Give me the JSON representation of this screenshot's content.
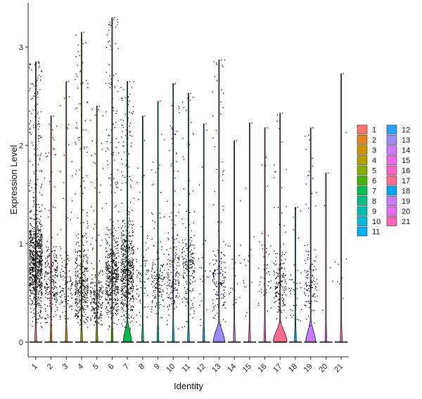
{
  "chart_data": {
    "type": "violin",
    "xlabel": "Identity",
    "ylabel": "Expression Level",
    "ylim": [
      -0.15,
      3.45
    ],
    "yticks": [
      0,
      1,
      2,
      3
    ],
    "grid": false,
    "legend_position": "right",
    "legend_columns": 2,
    "categories": [
      "1",
      "2",
      "3",
      "4",
      "5",
      "6",
      "7",
      "8",
      "9",
      "10",
      "11",
      "12",
      "13",
      "14",
      "15",
      "16",
      "17",
      "18",
      "19",
      "20",
      "21"
    ],
    "colors": [
      "#F8766D",
      "#E7851E",
      "#D09400",
      "#B2A100",
      "#89AC00",
      "#45B500",
      "#00BC51",
      "#00C087",
      "#00C0B2",
      "#00BCD6",
      "#00B3F2",
      "#29A3FF",
      "#9C8DFF",
      "#D277FF",
      "#F166E8",
      "#FF61C7",
      "#FF6C8F",
      "#00A5FF",
      "#C77CFF",
      "#E76BF3",
      "#FF62BC"
    ],
    "series": [
      {
        "category": "1",
        "n_points": 900,
        "max": 2.85,
        "dense_region": [
          0.4,
          1.2
        ]
      },
      {
        "category": "2",
        "n_points": 230,
        "max": 2.3,
        "dense_region": [
          0.3,
          1.0
        ]
      },
      {
        "category": "3",
        "n_points": 120,
        "max": 2.65,
        "dense_region": [
          0.3,
          0.9
        ]
      },
      {
        "category": "4",
        "n_points": 420,
        "max": 3.15,
        "dense_region": [
          0.2,
          0.9
        ]
      },
      {
        "category": "5",
        "n_points": 210,
        "max": 2.4,
        "dense_region": [
          0.2,
          0.7
        ]
      },
      {
        "category": "6",
        "n_points": 520,
        "max": 3.3,
        "dense_region": [
          0.3,
          1.0
        ]
      },
      {
        "category": "7",
        "n_points": 600,
        "max": 2.65,
        "dense_region": [
          0.3,
          1.1
        ]
      },
      {
        "category": "8",
        "n_points": 70,
        "max": 2.3,
        "dense_region": [
          0.3,
          1.0
        ]
      },
      {
        "category": "9",
        "n_points": 150,
        "max": 2.45,
        "dense_region": [
          0.3,
          0.9
        ]
      },
      {
        "category": "10",
        "n_points": 180,
        "max": 2.63,
        "dense_region": [
          0.3,
          1.0
        ]
      },
      {
        "category": "11",
        "n_points": 190,
        "max": 2.53,
        "dense_region": [
          0.4,
          1.1
        ]
      },
      {
        "category": "12",
        "n_points": 25,
        "max": 2.22,
        "dense_region": [
          0.3,
          1.0
        ]
      },
      {
        "category": "13",
        "n_points": 160,
        "max": 2.87,
        "dense_region": [
          0.3,
          0.9
        ]
      },
      {
        "category": "14",
        "n_points": 20,
        "max": 2.05,
        "dense_region": [
          0.3,
          1.0
        ]
      },
      {
        "category": "15",
        "n_points": 15,
        "max": 2.23,
        "dense_region": [
          0.3,
          1.0
        ]
      },
      {
        "category": "16",
        "n_points": 50,
        "max": 2.18,
        "dense_region": [
          0.3,
          1.0
        ]
      },
      {
        "category": "17",
        "n_points": 160,
        "max": 2.33,
        "dense_region": [
          0.3,
          0.9
        ]
      },
      {
        "category": "18",
        "n_points": 40,
        "max": 1.37,
        "dense_region": [
          0.2,
          0.8
        ]
      },
      {
        "category": "19",
        "n_points": 120,
        "max": 2.18,
        "dense_region": [
          0.3,
          0.9
        ]
      },
      {
        "category": "20",
        "n_points": 4,
        "max": 1.72,
        "dense_region": [
          0.3,
          1.0
        ]
      },
      {
        "category": "21",
        "n_points": 8,
        "max": 2.73,
        "dense_region": [
          0.3,
          1.0
        ]
      }
    ],
    "zero_bulge": {
      "7": 0.55,
      "13": 0.75,
      "17": 0.9,
      "19": 0.65
    }
  }
}
